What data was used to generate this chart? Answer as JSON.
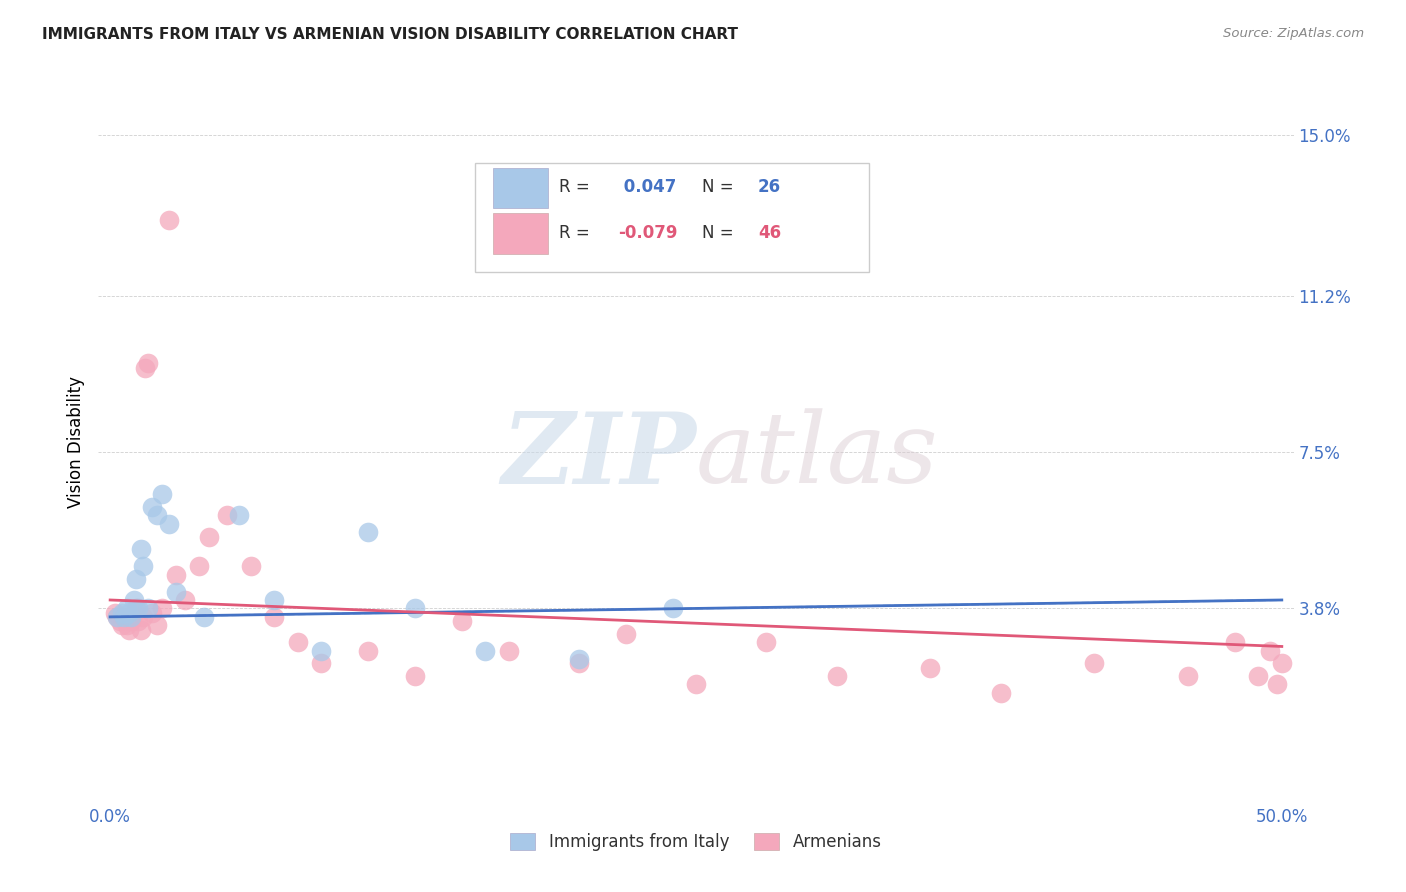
{
  "title": "IMMIGRANTS FROM ITALY VS ARMENIAN VISION DISABILITY CORRELATION CHART",
  "source": "Source: ZipAtlas.com",
  "ylabel": "Vision Disability",
  "ytick_labels": [
    "3.8%",
    "7.5%",
    "11.2%",
    "15.0%"
  ],
  "ytick_values": [
    0.038,
    0.075,
    0.112,
    0.15
  ],
  "xlim": [
    -0.005,
    0.505
  ],
  "ylim": [
    -0.008,
    0.163
  ],
  "legend_labels": [
    "Immigrants from Italy",
    "Armenians"
  ],
  "legend_r_italy": " 0.047",
  "legend_n_italy": "26",
  "legend_r_armenian": "-0.079",
  "legend_n_armenian": "46",
  "color_italy": "#a8c8e8",
  "color_armenian": "#f4a8bc",
  "color_italy_line": "#4472c4",
  "color_armenian_line": "#e05878",
  "color_axis_labels": "#4472c4",
  "watermark_zip": "ZIP",
  "watermark_atlas": "atlas",
  "italy_x": [
    0.003,
    0.005,
    0.006,
    0.007,
    0.008,
    0.009,
    0.01,
    0.011,
    0.012,
    0.013,
    0.014,
    0.016,
    0.018,
    0.02,
    0.022,
    0.025,
    0.028,
    0.04,
    0.055,
    0.07,
    0.09,
    0.11,
    0.13,
    0.16,
    0.2,
    0.24
  ],
  "italy_y": [
    0.036,
    0.037,
    0.036,
    0.038,
    0.037,
    0.036,
    0.04,
    0.045,
    0.038,
    0.052,
    0.048,
    0.038,
    0.062,
    0.06,
    0.065,
    0.058,
    0.042,
    0.036,
    0.06,
    0.04,
    0.028,
    0.056,
    0.038,
    0.028,
    0.026,
    0.038
  ],
  "armenian_x": [
    0.002,
    0.003,
    0.004,
    0.005,
    0.006,
    0.007,
    0.008,
    0.009,
    0.01,
    0.011,
    0.012,
    0.013,
    0.014,
    0.015,
    0.016,
    0.018,
    0.02,
    0.022,
    0.025,
    0.028,
    0.032,
    0.038,
    0.042,
    0.05,
    0.06,
    0.07,
    0.08,
    0.09,
    0.11,
    0.13,
    0.15,
    0.17,
    0.2,
    0.22,
    0.25,
    0.28,
    0.31,
    0.35,
    0.38,
    0.42,
    0.46,
    0.48,
    0.49,
    0.495,
    0.498,
    0.5
  ],
  "armenian_y": [
    0.037,
    0.036,
    0.035,
    0.034,
    0.036,
    0.034,
    0.033,
    0.035,
    0.037,
    0.038,
    0.035,
    0.033,
    0.036,
    0.095,
    0.096,
    0.037,
    0.034,
    0.038,
    0.13,
    0.046,
    0.04,
    0.048,
    0.055,
    0.06,
    0.048,
    0.036,
    0.03,
    0.025,
    0.028,
    0.022,
    0.035,
    0.028,
    0.025,
    0.032,
    0.02,
    0.03,
    0.022,
    0.024,
    0.018,
    0.025,
    0.022,
    0.03,
    0.022,
    0.028,
    0.02,
    0.025
  ],
  "italy_line_start_y": 0.036,
  "italy_line_end_y": 0.04,
  "armenian_line_start_y": 0.04,
  "armenian_line_end_y": 0.029
}
